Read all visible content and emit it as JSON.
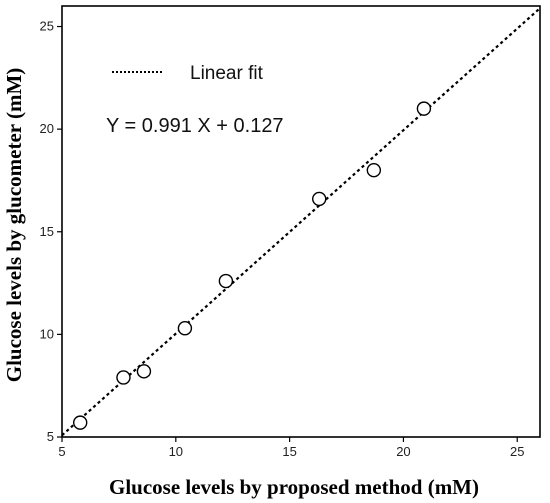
{
  "chart_data": {
    "type": "scatter",
    "title": "",
    "xlabel": "Glucose levels by proposed method (mM)",
    "ylabel": "Glucose levels by glucometer (mM)",
    "xlim": [
      5,
      26
    ],
    "ylim": [
      5,
      26
    ],
    "x_ticks": [
      "5",
      "10",
      "15",
      "20",
      "25"
    ],
    "y_ticks": [
      "5",
      "10",
      "15",
      "20",
      "25"
    ],
    "grid": false,
    "legend_label": "Linear fit",
    "legend_position": "top-left",
    "fit_equation": "Y = 0.991 X + 0.127",
    "fit": {
      "slope": 0.991,
      "intercept": 0.127
    },
    "points": [
      {
        "x": 5.8,
        "y": 5.7
      },
      {
        "x": 7.7,
        "y": 7.9
      },
      {
        "x": 8.6,
        "y": 8.2
      },
      {
        "x": 10.4,
        "y": 10.3
      },
      {
        "x": 12.2,
        "y": 12.6
      },
      {
        "x": 16.3,
        "y": 16.6
      },
      {
        "x": 18.7,
        "y": 18.0
      },
      {
        "x": 20.9,
        "y": 21.0
      }
    ],
    "colors": {
      "marker_stroke": "#000000",
      "fit_line": "#000000",
      "axes": "#000000"
    }
  }
}
